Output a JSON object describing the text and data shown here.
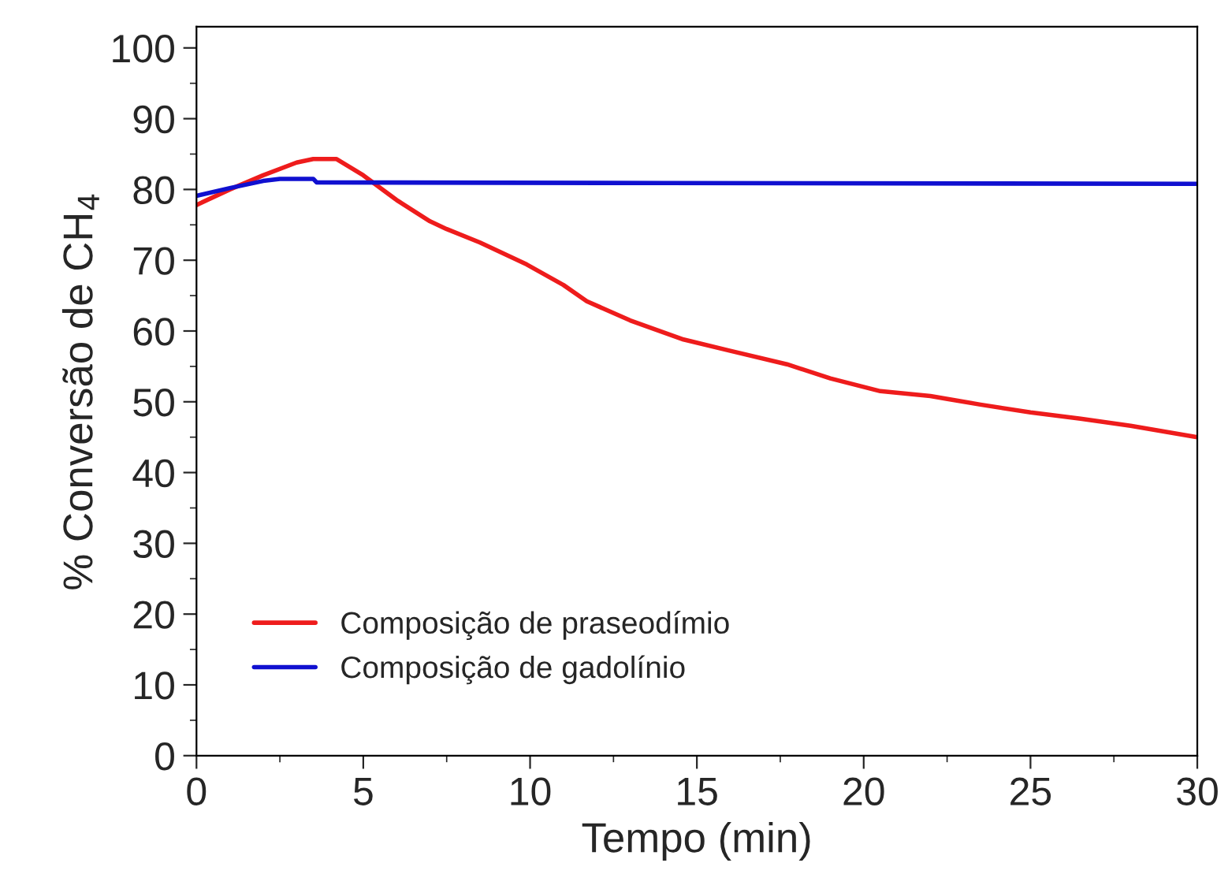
{
  "chart_data": {
    "type": "line",
    "xlabel": "Tempo (min)",
    "ylabel": "% Conversão de CH$_{4}$",
    "xlim": [
      0,
      30
    ],
    "xticks": [
      0,
      5,
      10,
      15,
      20,
      25,
      30
    ],
    "ylim": [
      0,
      103
    ],
    "yticks": [
      0,
      10,
      20,
      30,
      40,
      50,
      60,
      70,
      80,
      90,
      100
    ],
    "grid": false,
    "legend": "bottom left",
    "line_style": "solid",
    "marker": "none",
    "series": [
      {
        "name": "Composição de praseodímio",
        "color": "#ee1c1c",
        "x": [
          0,
          1,
          2,
          3,
          3.5,
          4.2,
          5,
          6,
          7,
          7.5,
          8.5,
          9.9,
          11,
          11.7,
          13,
          14.6,
          16,
          17.7,
          19,
          20.5,
          22,
          23.5,
          25,
          26.5,
          28,
          29,
          30
        ],
        "values": [
          77.8,
          80,
          82,
          83.8,
          84.3,
          84.3,
          82,
          78.5,
          75.5,
          74.4,
          72.5,
          69.4,
          66.5,
          64.2,
          61.5,
          58.8,
          57.2,
          55.3,
          53.3,
          51.5,
          50.8,
          49.6,
          48.5,
          47.6,
          46.6,
          45.8,
          45
        ]
      },
      {
        "name": "Composição de gadolínio",
        "color": "#1010d0",
        "x": [
          0,
          1,
          2,
          2.5,
          3.5,
          3.6,
          14,
          30
        ],
        "values": [
          79.1,
          80.2,
          81.2,
          81.5,
          81.5,
          81.0,
          80.9,
          80.8
        ]
      }
    ]
  }
}
